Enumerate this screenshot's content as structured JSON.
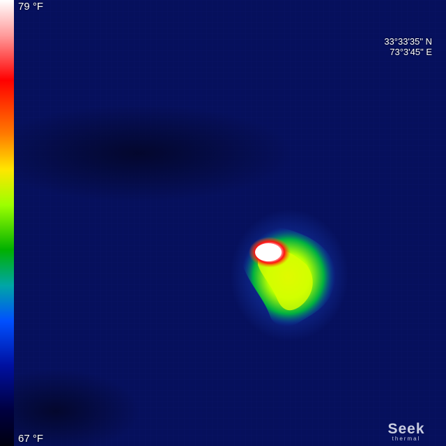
{
  "scale": {
    "max_label": "79 °F",
    "min_label": "67 °F",
    "palette": [
      "#ffffff",
      "#ff0000",
      "#ff7a00",
      "#ffe600",
      "#00b000",
      "#0050ff",
      "#000040"
    ]
  },
  "gps": {
    "latitude": "33°33'35\" N",
    "longitude": "73°3'45\" E"
  },
  "brand": {
    "name": "Seek",
    "tagline": "thermal"
  },
  "image": {
    "background_color": "#050a55"
  }
}
